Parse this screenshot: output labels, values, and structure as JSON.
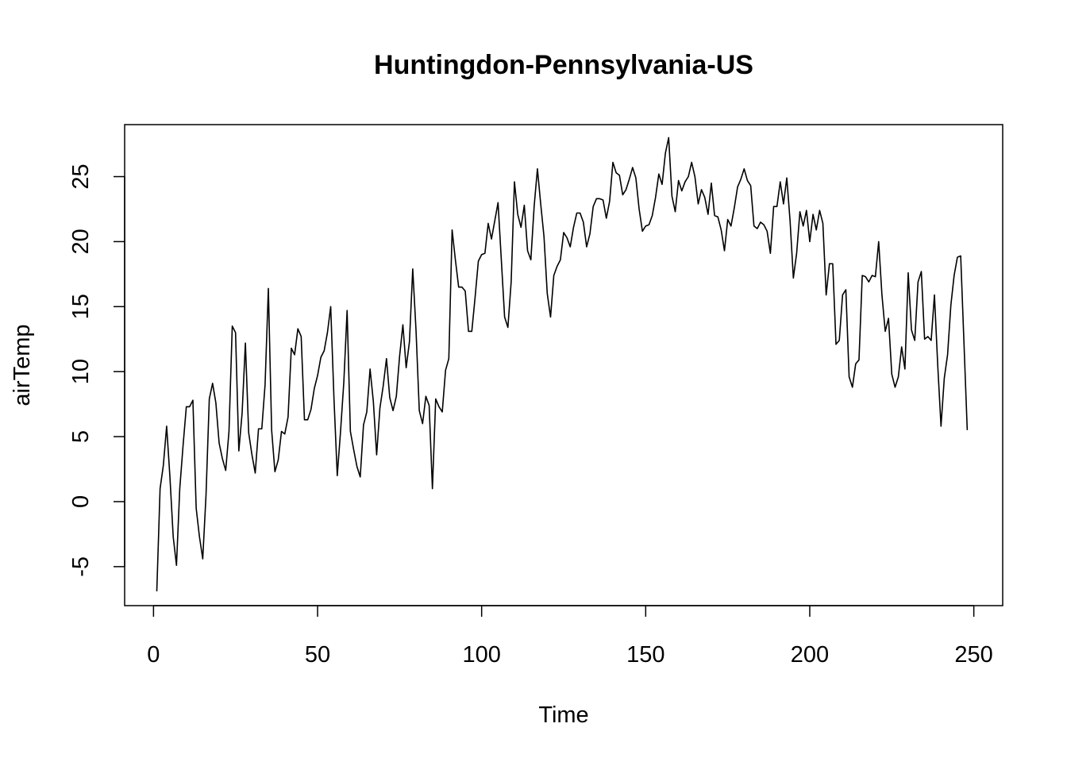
{
  "chart_data": {
    "type": "line",
    "title": "Huntingdon-Pennsylvania-US",
    "xlabel": "Time",
    "ylabel": "airTemp",
    "xlim": [
      -8.8,
      258.8
    ],
    "ylim": [
      -8.0,
      29.0
    ],
    "x_ticks": [
      0,
      50,
      100,
      150,
      200,
      250
    ],
    "y_ticks": [
      -5,
      0,
      5,
      10,
      15,
      20,
      25
    ],
    "x_tick_labels": [
      "0",
      "50",
      "100",
      "150",
      "200",
      "250"
    ],
    "y_tick_labels": [
      "-5",
      "0",
      "5",
      "10",
      "15",
      "20",
      "25"
    ],
    "grid": false,
    "line_color": "#000000",
    "series": [
      {
        "x_start": 1,
        "x_step": 1,
        "values": [
          -6.9,
          1.0,
          2.8,
          5.8,
          1.9,
          -2.7,
          -4.9,
          1.0,
          4.3,
          7.3,
          7.3,
          7.8,
          -0.5,
          -2.7,
          -4.4,
          0.5,
          7.9,
          9.1,
          7.6,
          4.5,
          3.3,
          2.4,
          5.4,
          13.5,
          13.0,
          3.9,
          6.8,
          12.2,
          5.3,
          3.6,
          2.2,
          5.6,
          5.6,
          9.0,
          16.4,
          5.5,
          2.3,
          3.2,
          5.4,
          5.2,
          6.5,
          11.8,
          11.3,
          13.3,
          12.7,
          6.3,
          6.3,
          7.1,
          8.7,
          9.7,
          11.1,
          11.6,
          13.0,
          15.0,
          7.9,
          2.0,
          5.4,
          9.2,
          14.7,
          5.4,
          4.0,
          2.7,
          1.9,
          5.9,
          6.9,
          10.2,
          7.7,
          3.6,
          7.2,
          8.9,
          11.0,
          8.0,
          7.0,
          8.1,
          11.2,
          13.6,
          10.3,
          12.3,
          17.9,
          13.2,
          7.0,
          6.0,
          8.1,
          7.4,
          1.0,
          7.9,
          7.3,
          6.9,
          10.1,
          11.0,
          20.9,
          18.6,
          16.5,
          16.5,
          16.2,
          13.1,
          13.1,
          15.7,
          18.5,
          19.0,
          19.1,
          21.4,
          20.2,
          21.6,
          23.0,
          18.6,
          14.2,
          13.4,
          16.9,
          24.6,
          22.1,
          21.1,
          22.8,
          19.3,
          18.6,
          22.7,
          25.6,
          22.9,
          20.4,
          16.0,
          14.2,
          17.4,
          18.1,
          18.6,
          20.7,
          20.3,
          19.6,
          21.1,
          22.2,
          22.2,
          21.5,
          19.6,
          20.6,
          22.7,
          23.3,
          23.3,
          23.2,
          21.8,
          23.1,
          26.1,
          25.3,
          25.1,
          23.6,
          24.0,
          24.8,
          25.7,
          24.9,
          22.5,
          20.8,
          21.2,
          21.3,
          22.0,
          23.4,
          25.2,
          24.4,
          26.8,
          28.0,
          23.5,
          22.3,
          24.7,
          23.9,
          24.6,
          25.0,
          26.1,
          25.0,
          22.9,
          24.0,
          23.4,
          22.1,
          24.5,
          22.0,
          21.9,
          20.9,
          19.3,
          21.7,
          21.2,
          22.6,
          24.2,
          24.8,
          25.6,
          24.7,
          24.3,
          21.2,
          21.0,
          21.5,
          21.3,
          20.8,
          19.1,
          22.7,
          22.7,
          24.6,
          22.9,
          24.9,
          21.6,
          17.2,
          19.1,
          22.3,
          21.2,
          22.4,
          20.0,
          22.1,
          20.9,
          22.4,
          21.4,
          15.9,
          18.3,
          18.3,
          12.1,
          12.4,
          15.9,
          16.3,
          9.6,
          8.8,
          10.6,
          10.9,
          17.4,
          17.3,
          16.9,
          17.4,
          17.3,
          20.0,
          15.9,
          13.1,
          14.1,
          9.8,
          8.8,
          9.6,
          11.9,
          10.2,
          17.6,
          13.2,
          12.4,
          16.9,
          17.7,
          12.5,
          12.7,
          12.4,
          15.9,
          10.5,
          5.8,
          9.5,
          11.3,
          15.1,
          17.4,
          18.8,
          18.9,
          12.2,
          5.5
        ]
      }
    ]
  }
}
